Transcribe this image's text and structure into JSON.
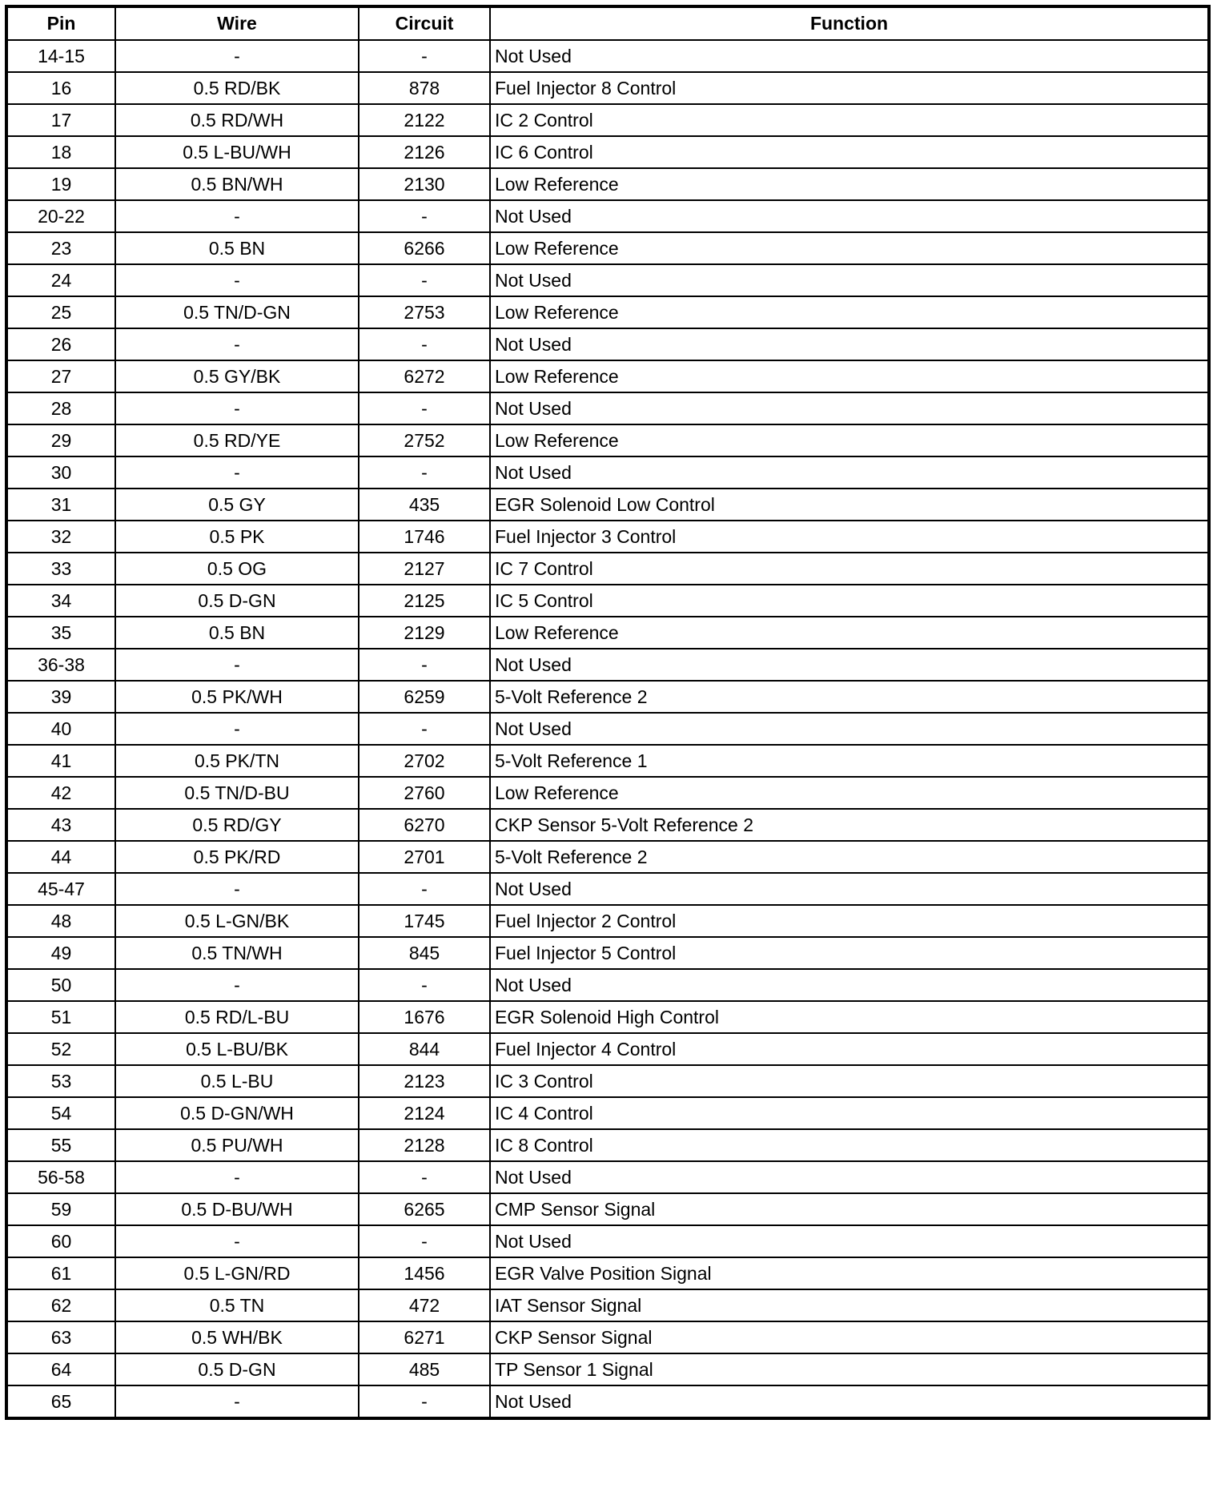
{
  "table": {
    "headers": [
      "Pin",
      "Wire",
      "Circuit",
      "Function"
    ],
    "rows": [
      [
        "14-15",
        "-",
        "-",
        "Not Used"
      ],
      [
        "16",
        "0.5 RD/BK",
        "878",
        "Fuel Injector 8 Control"
      ],
      [
        "17",
        "0.5 RD/WH",
        "2122",
        "IC 2 Control"
      ],
      [
        "18",
        "0.5 L-BU/WH",
        "2126",
        "IC 6 Control"
      ],
      [
        "19",
        "0.5 BN/WH",
        "2130",
        "Low Reference"
      ],
      [
        "20-22",
        "-",
        "-",
        "Not Used"
      ],
      [
        "23",
        "0.5 BN",
        "6266",
        "Low Reference"
      ],
      [
        "24",
        "-",
        "-",
        "Not Used"
      ],
      [
        "25",
        "0.5 TN/D-GN",
        "2753",
        "Low Reference"
      ],
      [
        "26",
        "-",
        "-",
        "Not Used"
      ],
      [
        "27",
        "0.5 GY/BK",
        "6272",
        "Low Reference"
      ],
      [
        "28",
        "-",
        "-",
        "Not Used"
      ],
      [
        "29",
        "0.5 RD/YE",
        "2752",
        "Low Reference"
      ],
      [
        "30",
        "-",
        "-",
        "Not Used"
      ],
      [
        "31",
        "0.5 GY",
        "435",
        "EGR Solenoid Low Control"
      ],
      [
        "32",
        "0.5 PK",
        "1746",
        "Fuel Injector 3 Control"
      ],
      [
        "33",
        "0.5 OG",
        "2127",
        "IC 7 Control"
      ],
      [
        "34",
        "0.5 D-GN",
        "2125",
        "IC 5 Control"
      ],
      [
        "35",
        "0.5 BN",
        "2129",
        "Low Reference"
      ],
      [
        "36-38",
        "-",
        "-",
        "Not Used"
      ],
      [
        "39",
        "0.5 PK/WH",
        "6259",
        "5-Volt Reference 2"
      ],
      [
        "40",
        "-",
        "-",
        "Not Used"
      ],
      [
        "41",
        "0.5 PK/TN",
        "2702",
        "5-Volt Reference 1"
      ],
      [
        "42",
        "0.5 TN/D-BU",
        "2760",
        "Low Reference"
      ],
      [
        "43",
        "0.5 RD/GY",
        "6270",
        "CKP Sensor 5-Volt Reference 2"
      ],
      [
        "44",
        "0.5 PK/RD",
        "2701",
        "5-Volt Reference 2"
      ],
      [
        "45-47",
        "-",
        "-",
        "Not Used"
      ],
      [
        "48",
        "0.5 L-GN/BK",
        "1745",
        "Fuel Injector 2 Control"
      ],
      [
        "49",
        "0.5 TN/WH",
        "845",
        "Fuel Injector 5 Control"
      ],
      [
        "50",
        "-",
        "-",
        "Not Used"
      ],
      [
        "51",
        "0.5 RD/L-BU",
        "1676",
        "EGR Solenoid High Control"
      ],
      [
        "52",
        "0.5 L-BU/BK",
        "844",
        "Fuel Injector 4 Control"
      ],
      [
        "53",
        "0.5 L-BU",
        "2123",
        "IC 3 Control"
      ],
      [
        "54",
        "0.5 D-GN/WH",
        "2124",
        "IC 4 Control"
      ],
      [
        "55",
        "0.5 PU/WH",
        "2128",
        "IC 8 Control"
      ],
      [
        "56-58",
        "-",
        "-",
        "Not Used"
      ],
      [
        "59",
        "0.5 D-BU/WH",
        "6265",
        "CMP Sensor Signal"
      ],
      [
        "60",
        "-",
        "-",
        "Not Used"
      ],
      [
        "61",
        "0.5 L-GN/RD",
        "1456",
        "EGR Valve Position Signal"
      ],
      [
        "62",
        "0.5 TN",
        "472",
        "IAT Sensor Signal"
      ],
      [
        "63",
        "0.5 WH/BK",
        "6271",
        "CKP Sensor Signal"
      ],
      [
        "64",
        "0.5 D-GN",
        "485",
        "TP Sensor 1 Signal"
      ],
      [
        "65",
        "-",
        "-",
        "Not Used"
      ]
    ]
  }
}
